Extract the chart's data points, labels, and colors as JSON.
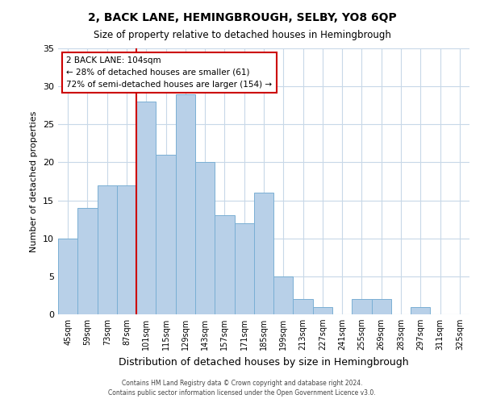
{
  "title": "2, BACK LANE, HEMINGBROUGH, SELBY, YO8 6QP",
  "subtitle": "Size of property relative to detached houses in Hemingbrough",
  "xlabel": "Distribution of detached houses by size in Hemingbrough",
  "ylabel": "Number of detached properties",
  "bin_labels": [
    "45sqm",
    "59sqm",
    "73sqm",
    "87sqm",
    "101sqm",
    "115sqm",
    "129sqm",
    "143sqm",
    "157sqm",
    "171sqm",
    "185sqm",
    "199sqm",
    "213sqm",
    "227sqm",
    "241sqm",
    "255sqm",
    "269sqm",
    "283sqm",
    "297sqm",
    "311sqm",
    "325sqm"
  ],
  "bar_values": [
    10,
    14,
    17,
    17,
    28,
    21,
    29,
    20,
    13,
    12,
    16,
    5,
    2,
    1,
    0,
    2,
    2,
    0,
    1,
    0,
    0
  ],
  "bar_color": "#b8d0e8",
  "bar_edge_color": "#7aafd4",
  "vline_x_index": 4,
  "vline_color": "#cc0000",
  "annotation_title": "2 BACK LANE: 104sqm",
  "annotation_line1": "← 28% of detached houses are smaller (61)",
  "annotation_line2": "72% of semi-detached houses are larger (154) →",
  "annotation_box_color": "#ffffff",
  "annotation_box_edge": "#cc0000",
  "ylim": [
    0,
    35
  ],
  "yticks": [
    0,
    5,
    10,
    15,
    20,
    25,
    30,
    35
  ],
  "footer1": "Contains HM Land Registry data © Crown copyright and database right 2024.",
  "footer2": "Contains public sector information licensed under the Open Government Licence v3.0.",
  "background_color": "#ffffff",
  "grid_color": "#c8d8e8"
}
